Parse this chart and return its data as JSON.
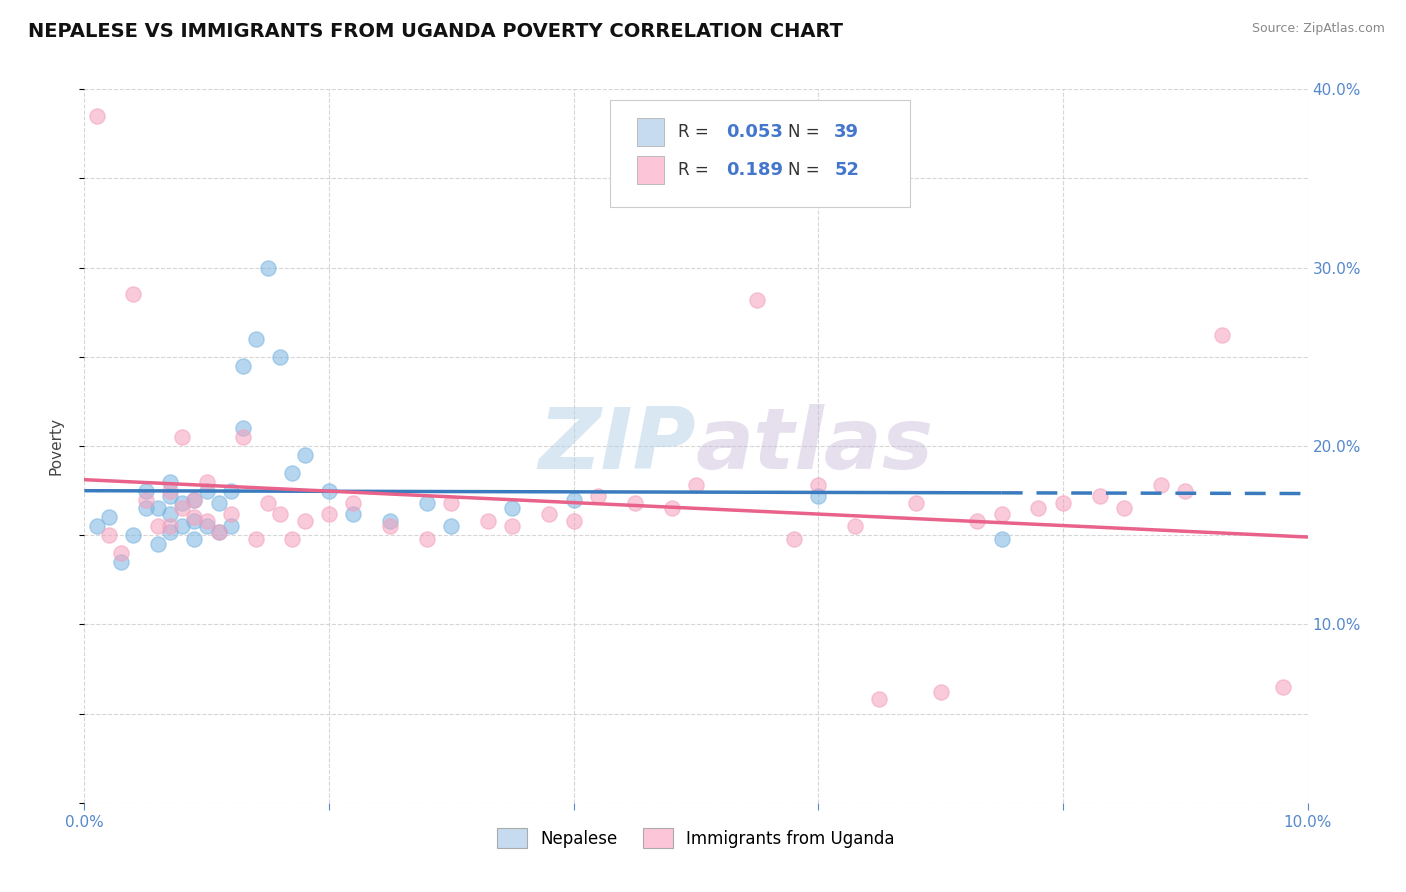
{
  "title": "NEPALESE VS IMMIGRANTS FROM UGANDA POVERTY CORRELATION CHART",
  "source_text": "Source: ZipAtlas.com",
  "ylabel": "Poverty",
  "xlim": [
    0.0,
    0.1
  ],
  "ylim": [
    0.0,
    0.4
  ],
  "watermark_zip": "ZIP",
  "watermark_atlas": "atlas",
  "blue_color": "#7ab4e0",
  "pink_color": "#f4a0bc",
  "blue_line_color": "#3a7bbf",
  "pink_line_color": "#e8628a",
  "blue_fill": "#c6dbef",
  "pink_fill": "#fcc5d8",
  "nepalese_x": [
    0.001,
    0.002,
    0.003,
    0.004,
    0.005,
    0.005,
    0.006,
    0.006,
    0.007,
    0.007,
    0.007,
    0.007,
    0.008,
    0.008,
    0.009,
    0.009,
    0.009,
    0.01,
    0.01,
    0.011,
    0.011,
    0.012,
    0.012,
    0.013,
    0.013,
    0.014,
    0.015,
    0.016,
    0.017,
    0.018,
    0.02,
    0.022,
    0.025,
    0.028,
    0.03,
    0.035,
    0.04,
    0.06,
    0.075
  ],
  "nepalese_y": [
    0.155,
    0.16,
    0.135,
    0.15,
    0.165,
    0.175,
    0.145,
    0.165,
    0.152,
    0.162,
    0.172,
    0.18,
    0.155,
    0.168,
    0.148,
    0.158,
    0.17,
    0.155,
    0.175,
    0.152,
    0.168,
    0.155,
    0.175,
    0.21,
    0.245,
    0.26,
    0.3,
    0.25,
    0.185,
    0.195,
    0.175,
    0.162,
    0.158,
    0.168,
    0.155,
    0.165,
    0.17,
    0.172,
    0.148
  ],
  "uganda_x": [
    0.001,
    0.002,
    0.003,
    0.004,
    0.005,
    0.006,
    0.007,
    0.007,
    0.008,
    0.008,
    0.009,
    0.009,
    0.01,
    0.01,
    0.011,
    0.012,
    0.013,
    0.014,
    0.015,
    0.016,
    0.017,
    0.018,
    0.02,
    0.022,
    0.025,
    0.028,
    0.03,
    0.033,
    0.035,
    0.038,
    0.04,
    0.042,
    0.045,
    0.048,
    0.05,
    0.055,
    0.058,
    0.06,
    0.063,
    0.065,
    0.068,
    0.07,
    0.073,
    0.075,
    0.078,
    0.08,
    0.083,
    0.085,
    0.088,
    0.09,
    0.093,
    0.098
  ],
  "uganda_y": [
    0.385,
    0.15,
    0.14,
    0.285,
    0.17,
    0.155,
    0.155,
    0.175,
    0.165,
    0.205,
    0.16,
    0.17,
    0.158,
    0.18,
    0.152,
    0.162,
    0.205,
    0.148,
    0.168,
    0.162,
    0.148,
    0.158,
    0.162,
    0.168,
    0.155,
    0.148,
    0.168,
    0.158,
    0.155,
    0.162,
    0.158,
    0.172,
    0.168,
    0.165,
    0.178,
    0.282,
    0.148,
    0.178,
    0.155,
    0.058,
    0.168,
    0.062,
    0.158,
    0.162,
    0.165,
    0.168,
    0.172,
    0.165,
    0.178,
    0.175,
    0.262,
    0.065
  ]
}
